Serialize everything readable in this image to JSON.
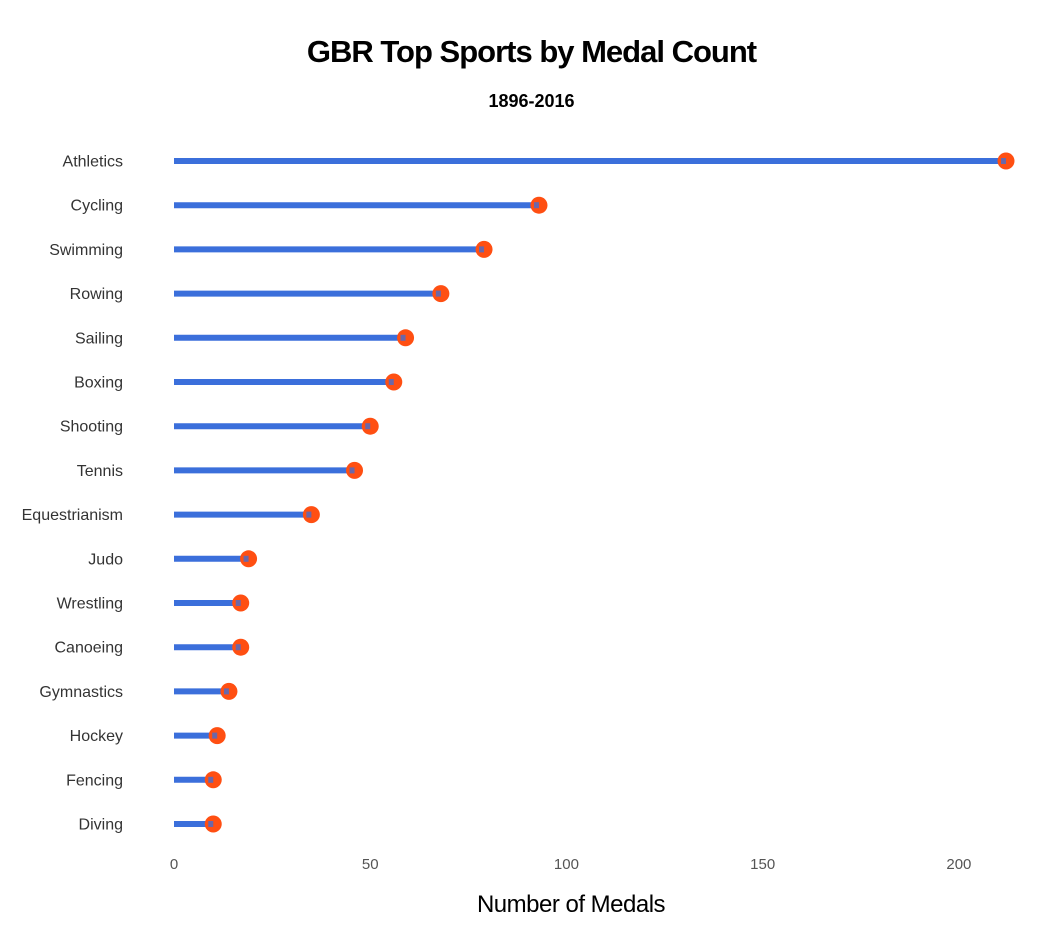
{
  "chart_data": {
    "type": "lollipop",
    "title": "GBR Top Sports by Medal Count",
    "subtitle": "1896-2016",
    "xlabel": "Number of Medals",
    "ylabel": "",
    "xlim": [
      0,
      212
    ],
    "xticks": [
      0,
      50,
      100,
      150,
      200
    ],
    "grid": false,
    "categories": [
      "Athletics",
      "Cycling",
      "Swimming",
      "Rowing",
      "Sailing",
      "Boxing",
      "Shooting",
      "Tennis",
      "Equestrianism",
      "Judo",
      "Wrestling",
      "Canoeing",
      "Gymnastics",
      "Hockey",
      "Fencing",
      "Diving"
    ],
    "values": [
      212,
      93,
      79,
      68,
      59,
      56,
      50,
      46,
      35,
      19,
      17,
      17,
      14,
      11,
      10,
      10
    ],
    "colors": {
      "stem": "#3b6fdb",
      "dot": "#ff4f12"
    }
  }
}
